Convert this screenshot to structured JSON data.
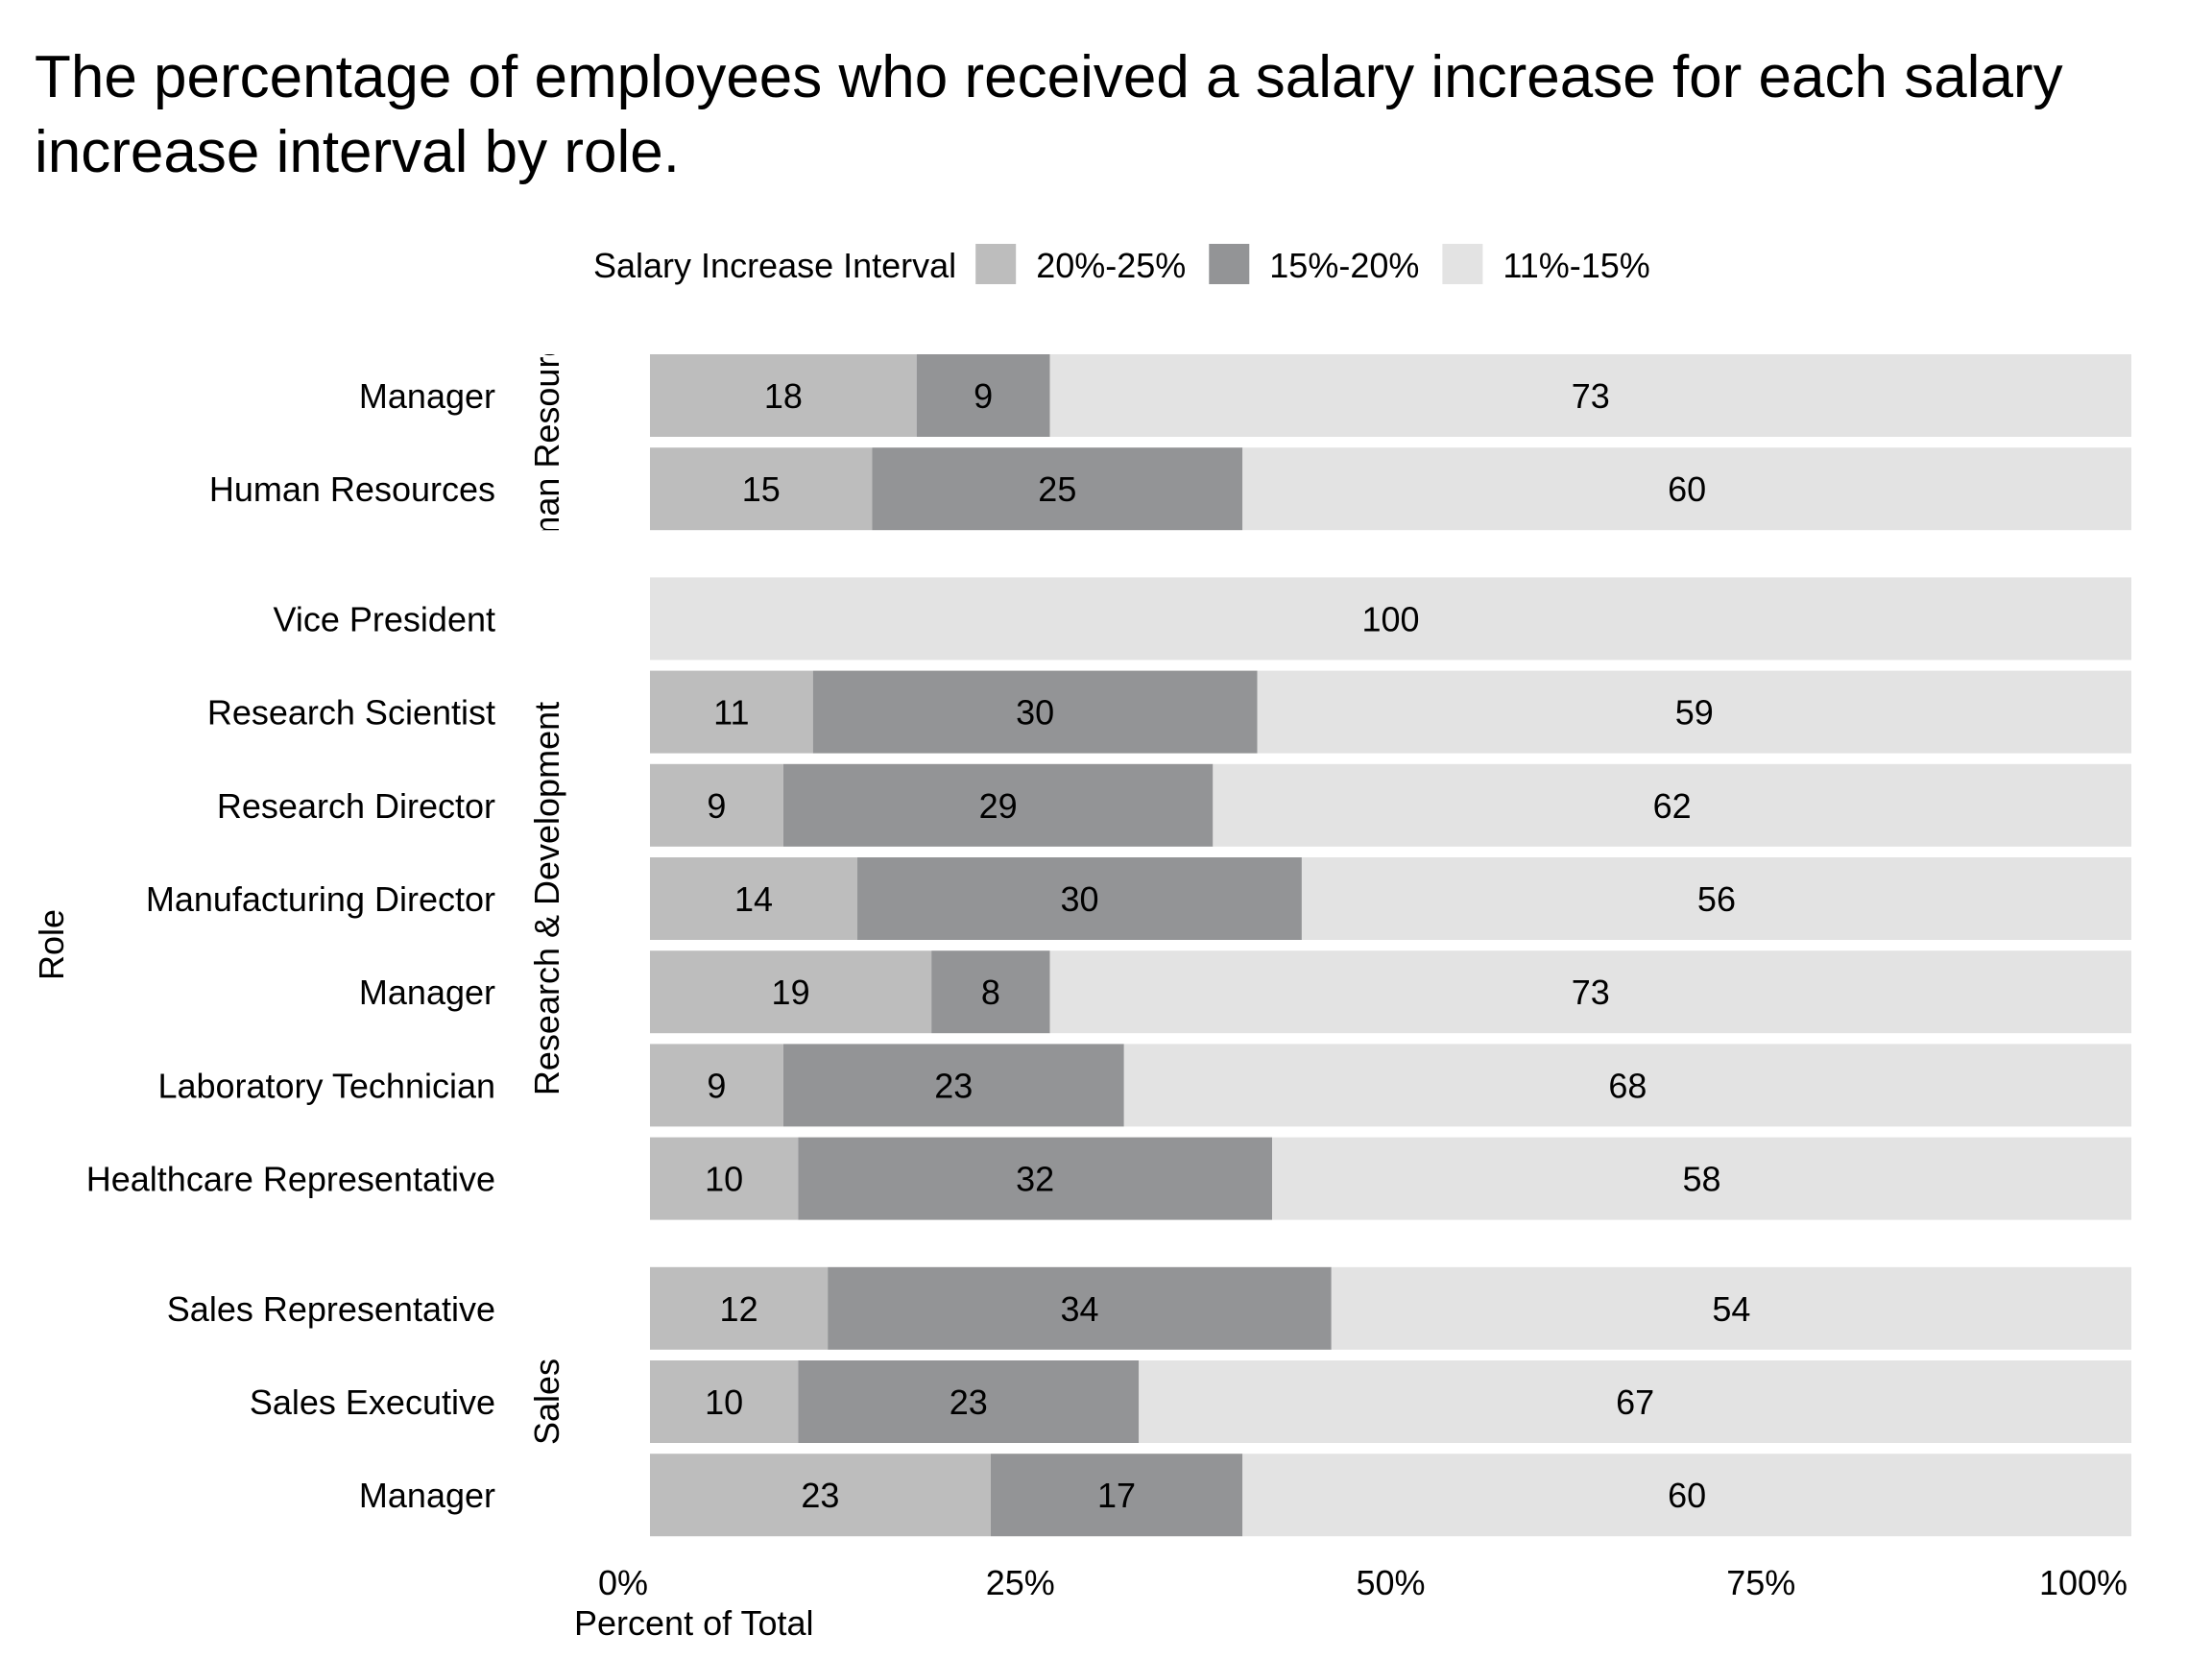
{
  "chart_data": {
    "type": "bar",
    "orientation": "horizontal",
    "stacked": true,
    "title": "The percentage of employees who received a salary increase for each salary increase interval by role.",
    "xlabel": "Percent of Total",
    "ylabel": "Role",
    "xlim": [
      0,
      100
    ],
    "x_ticks": [
      "0%",
      "25%",
      "50%",
      "75%",
      "100%"
    ],
    "grid": false,
    "legend": {
      "title": "Salary Increase Interval",
      "position": "top",
      "entries": [
        {
          "name": "20%-25%",
          "color": "#bdbdbd"
        },
        {
          "name": "15%-20%",
          "color": "#939496"
        },
        {
          "name": "11%-15%",
          "color": "#e3e3e3"
        }
      ]
    },
    "series_order": [
      "20%-25%",
      "15%-20%",
      "11%-15%"
    ],
    "groups": [
      {
        "label": "Human Resources",
        "label_shown": "man Resourc",
        "rows": [
          {
            "role": "Manager",
            "values": [
              18,
              9,
              73
            ]
          },
          {
            "role": "Human Resources",
            "values": [
              15,
              25,
              60
            ]
          }
        ]
      },
      {
        "label": "Research & Development",
        "label_shown": "Research & Development",
        "rows": [
          {
            "role": "Vice President",
            "values": [
              0,
              0,
              100
            ]
          },
          {
            "role": "Research Scientist",
            "values": [
              11,
              30,
              59
            ]
          },
          {
            "role": "Research Director",
            "values": [
              9,
              29,
              62
            ]
          },
          {
            "role": "Manufacturing Director",
            "values": [
              14,
              30,
              56
            ]
          },
          {
            "role": "Manager",
            "values": [
              19,
              8,
              73
            ]
          },
          {
            "role": "Laboratory Technician",
            "values": [
              9,
              23,
              68
            ]
          },
          {
            "role": "Healthcare Representative",
            "values": [
              10,
              32,
              58
            ]
          }
        ]
      },
      {
        "label": "Sales",
        "label_shown": "Sales",
        "rows": [
          {
            "role": "Sales Representative",
            "values": [
              12,
              34,
              54
            ]
          },
          {
            "role": "Sales Executive",
            "values": [
              10,
              23,
              67
            ]
          },
          {
            "role": "Manager",
            "values": [
              23,
              17,
              60
            ]
          }
        ]
      }
    ]
  }
}
